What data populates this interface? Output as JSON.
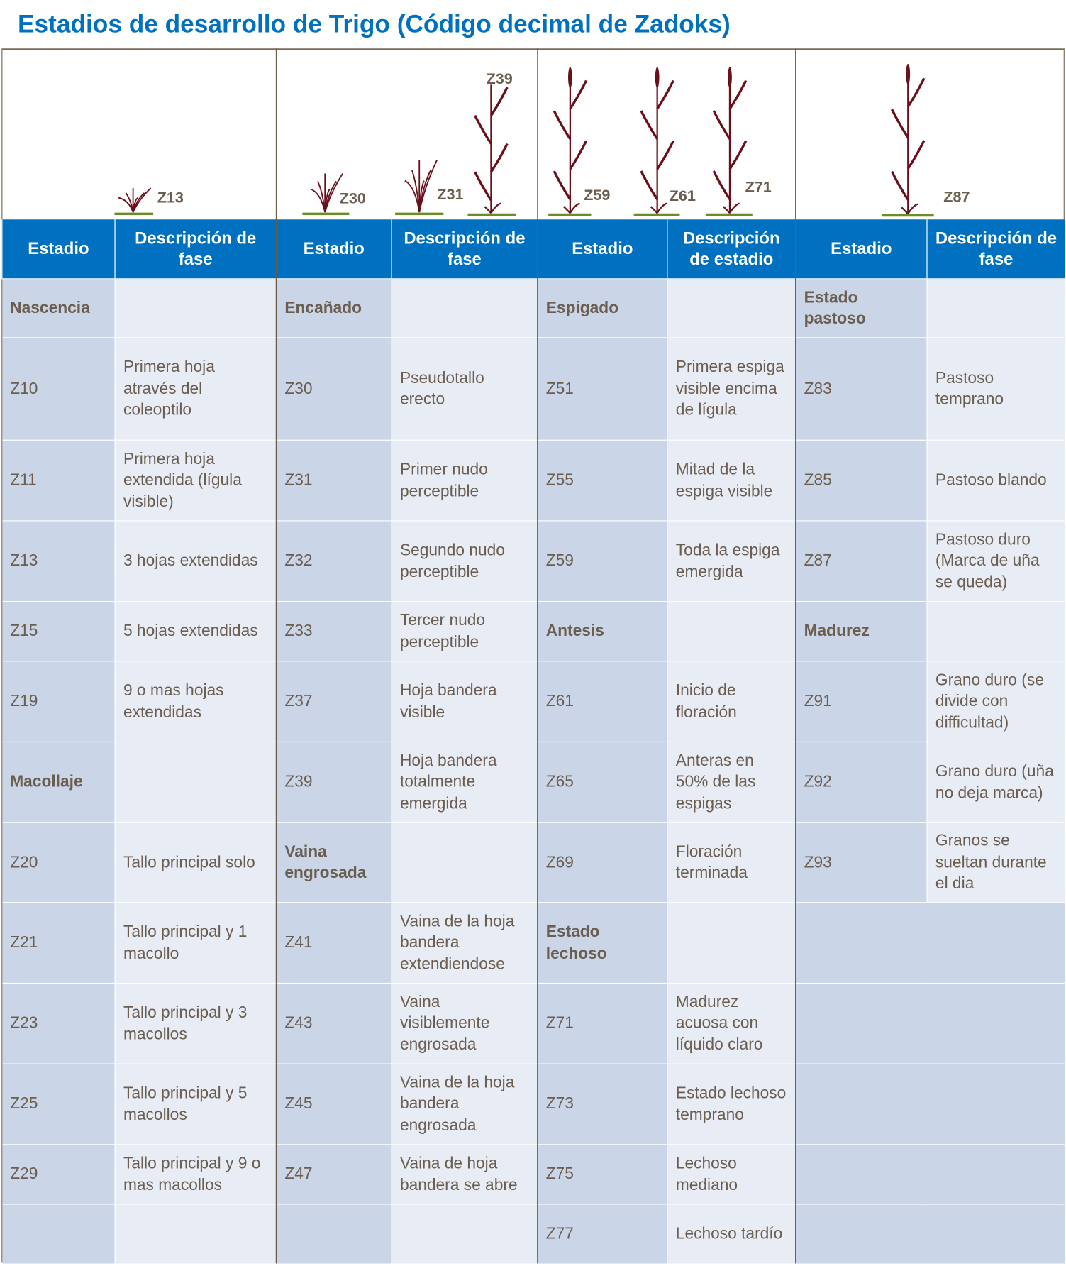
{
  "title": "Estadios de desarrollo de Trigo (Código decimal de Zadoks)",
  "plant_labels": [
    "Z13",
    "Z30",
    "Z31",
    "Z39",
    "Z59",
    "Z61",
    "Z71",
    "Z87"
  ],
  "colors": {
    "header": "#0070c0",
    "code_cell": "#cad6e8",
    "desc_cell": "#e7ecf5",
    "text": "#6b5d4f",
    "plant": "#6b0f1a",
    "ground": "#6b8e23"
  },
  "groups": [
    {
      "headers": [
        "Estadio",
        "Descripción de fase"
      ],
      "rows": [
        {
          "code": "Nascencia",
          "desc": "",
          "phase": true
        },
        {
          "code": "Z10",
          "desc": "Primera hoja através del coleoptilo"
        },
        {
          "code": "Z11",
          "desc": "Primera hoja extendida (lígula visible)"
        },
        {
          "code": "Z13",
          "desc": "3 hojas extendidas"
        },
        {
          "code": "Z15",
          "desc": "5 hojas extendidas"
        },
        {
          "code": "Z19",
          "desc": "9 o mas hojas extendidas"
        },
        {
          "code": "Macollaje",
          "desc": "",
          "phase": true
        },
        {
          "code": "Z20",
          "desc": "Tallo principal solo"
        },
        {
          "code": "Z21",
          "desc": "Tallo principal y 1 macollo"
        },
        {
          "code": "Z23",
          "desc": "Tallo principal y 3 macollos"
        },
        {
          "code": "Z25",
          "desc": "Tallo principal y 5 macollos"
        },
        {
          "code": "Z29",
          "desc": "Tallo principal y 9 o mas macollos"
        },
        {
          "code": "",
          "desc": ""
        }
      ]
    },
    {
      "headers": [
        "Estadio",
        "Descripción de fase"
      ],
      "rows": [
        {
          "code": "Encañado",
          "desc": "",
          "phase": true
        },
        {
          "code": "Z30",
          "desc": "Pseudotallo erecto"
        },
        {
          "code": "Z31",
          "desc": "Primer nudo perceptible"
        },
        {
          "code": "Z32",
          "desc": "Segundo nudo perceptible"
        },
        {
          "code": "Z33",
          "desc": "Tercer nudo perceptible"
        },
        {
          "code": "Z37",
          "desc": "Hoja bandera visible"
        },
        {
          "code": "Z39",
          "desc": "Hoja bandera totalmente emergida"
        },
        {
          "code": "Vaina engrosada",
          "desc": "",
          "phase": true
        },
        {
          "code": "Z41",
          "desc": "Vaina de la hoja bandera extendiendose"
        },
        {
          "code": "Z43",
          "desc": "Vaina visiblemente engrosada"
        },
        {
          "code": "Z45",
          "desc": "Vaina de la hoja bandera engrosada"
        },
        {
          "code": "Z47",
          "desc": "Vaina de hoja bandera se abre"
        },
        {
          "code": "",
          "desc": ""
        }
      ]
    },
    {
      "headers": [
        "Estadio",
        "Descripción de estadio"
      ],
      "rows": [
        {
          "code": "Espigado",
          "desc": "",
          "phase": true
        },
        {
          "code": "Z51",
          "desc": "Primera espiga visible encima de lígula"
        },
        {
          "code": "Z55",
          "desc": "Mitad de la espiga visible"
        },
        {
          "code": "Z59",
          "desc": "Toda la espiga emergida"
        },
        {
          "code": "Antesis",
          "desc": "",
          "phase": true
        },
        {
          "code": "Z61",
          "desc": "Inicio de floración"
        },
        {
          "code": "Z65",
          "desc": "Anteras en 50% de las espigas"
        },
        {
          "code": "Z69",
          "desc": "Floración terminada"
        },
        {
          "code": "Estado lechoso",
          "desc": "",
          "phase": true
        },
        {
          "code": "Z71",
          "desc": "Madurez acuosa con líquido claro"
        },
        {
          "code": "Z73",
          "desc": "Estado lechoso temprano"
        },
        {
          "code": "Z75",
          "desc": "Lechoso mediano"
        },
        {
          "code": "Z77",
          "desc": "Lechoso tardío"
        }
      ]
    },
    {
      "headers": [
        "Estadio",
        "Descripción de fase"
      ],
      "rows": [
        {
          "code": "Estado pastoso",
          "desc": "",
          "phase": true
        },
        {
          "code": "Z83",
          "desc": "Pastoso temprano"
        },
        {
          "code": "Z85",
          "desc": "Pastoso blando"
        },
        {
          "code": "Z87",
          "desc": "Pastoso duro (Marca de uña se queda)"
        },
        {
          "code": "Madurez",
          "desc": "",
          "phase": true
        },
        {
          "code": "Z91",
          "desc": "Grano duro (se divide con difficultad)"
        },
        {
          "code": "Z92",
          "desc": "Grano duro (uña no deja marca)"
        },
        {
          "code": "Z93",
          "desc": "Granos se sueltan durante el dia"
        },
        {
          "code": "",
          "desc": ""
        },
        {
          "code": "",
          "desc": ""
        },
        {
          "code": "",
          "desc": ""
        },
        {
          "code": "",
          "desc": ""
        },
        {
          "code": "",
          "desc": ""
        }
      ]
    }
  ]
}
